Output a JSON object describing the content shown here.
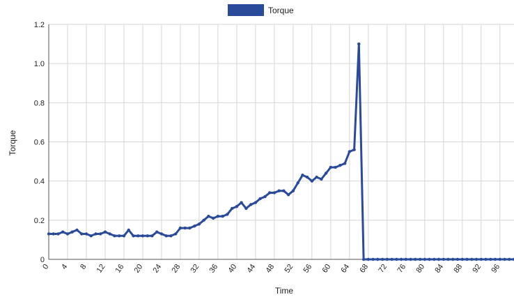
{
  "chart_data": {
    "type": "line",
    "title": "",
    "xlabel": "Time",
    "ylabel": "Torque",
    "xlim": [
      0,
      99
    ],
    "ylim": [
      0,
      1.2
    ],
    "yticks": [
      0,
      0.2,
      0.4,
      0.6,
      0.8,
      1.0,
      1.2
    ],
    "ytick_labels": [
      "0",
      "0.2",
      "0.4",
      "0.6",
      "0.8",
      "1.0",
      "1.2"
    ],
    "xticks": [
      0,
      4,
      8,
      12,
      16,
      20,
      24,
      28,
      32,
      36,
      40,
      44,
      48,
      52,
      56,
      60,
      64,
      68,
      72,
      76,
      80,
      84,
      88,
      92,
      96
    ],
    "xtick_labels": [
      "0",
      "4",
      "8",
      "12",
      "16",
      "20",
      "24",
      "28",
      "32",
      "36",
      "40",
      "44",
      "48",
      "52",
      "56",
      "60",
      "64",
      "68",
      "72",
      "76",
      "80",
      "84",
      "88",
      "92",
      "96"
    ],
    "grid": true,
    "legend_position": "top-center",
    "series": [
      {
        "name": "Torque",
        "color": "#2a4a9a",
        "x": [
          0,
          1,
          2,
          3,
          4,
          5,
          6,
          7,
          8,
          9,
          10,
          11,
          12,
          13,
          14,
          15,
          16,
          17,
          18,
          19,
          20,
          21,
          22,
          23,
          24,
          25,
          26,
          27,
          28,
          29,
          30,
          31,
          32,
          33,
          34,
          35,
          36,
          37,
          38,
          39,
          40,
          41,
          42,
          43,
          44,
          45,
          46,
          47,
          48,
          49,
          50,
          51,
          52,
          53,
          54,
          55,
          56,
          57,
          58,
          59,
          60,
          61,
          62,
          63,
          64,
          65,
          66,
          67,
          68,
          69,
          70,
          71,
          72,
          73,
          74,
          75,
          76,
          77,
          78,
          79,
          80,
          81,
          82,
          83,
          84,
          85,
          86,
          87,
          88,
          89,
          90,
          91,
          92,
          93,
          94,
          95,
          96,
          97,
          98,
          99
        ],
        "values": [
          0.13,
          0.13,
          0.13,
          0.14,
          0.13,
          0.14,
          0.15,
          0.13,
          0.13,
          0.12,
          0.13,
          0.13,
          0.14,
          0.13,
          0.12,
          0.12,
          0.12,
          0.15,
          0.12,
          0.12,
          0.12,
          0.12,
          0.12,
          0.14,
          0.13,
          0.12,
          0.12,
          0.13,
          0.16,
          0.16,
          0.16,
          0.17,
          0.18,
          0.2,
          0.22,
          0.21,
          0.22,
          0.22,
          0.23,
          0.26,
          0.27,
          0.29,
          0.26,
          0.28,
          0.29,
          0.31,
          0.32,
          0.34,
          0.34,
          0.35,
          0.35,
          0.33,
          0.35,
          0.39,
          0.43,
          0.42,
          0.4,
          0.42,
          0.41,
          0.44,
          0.47,
          0.47,
          0.48,
          0.49,
          0.55,
          0.56,
          1.1,
          0.0,
          0.0,
          0.0,
          0.0,
          0.0,
          0.0,
          0.0,
          0.0,
          0.0,
          0.0,
          0.0,
          0.0,
          0.0,
          0.0,
          0.0,
          0.0,
          0.0,
          0.0,
          0.0,
          0.0,
          0.0,
          0.0,
          0.0,
          0.0,
          0.0,
          0.0,
          0.0,
          0.0,
          0.0,
          0.0,
          0.0,
          0.0,
          0.0
        ]
      }
    ]
  }
}
